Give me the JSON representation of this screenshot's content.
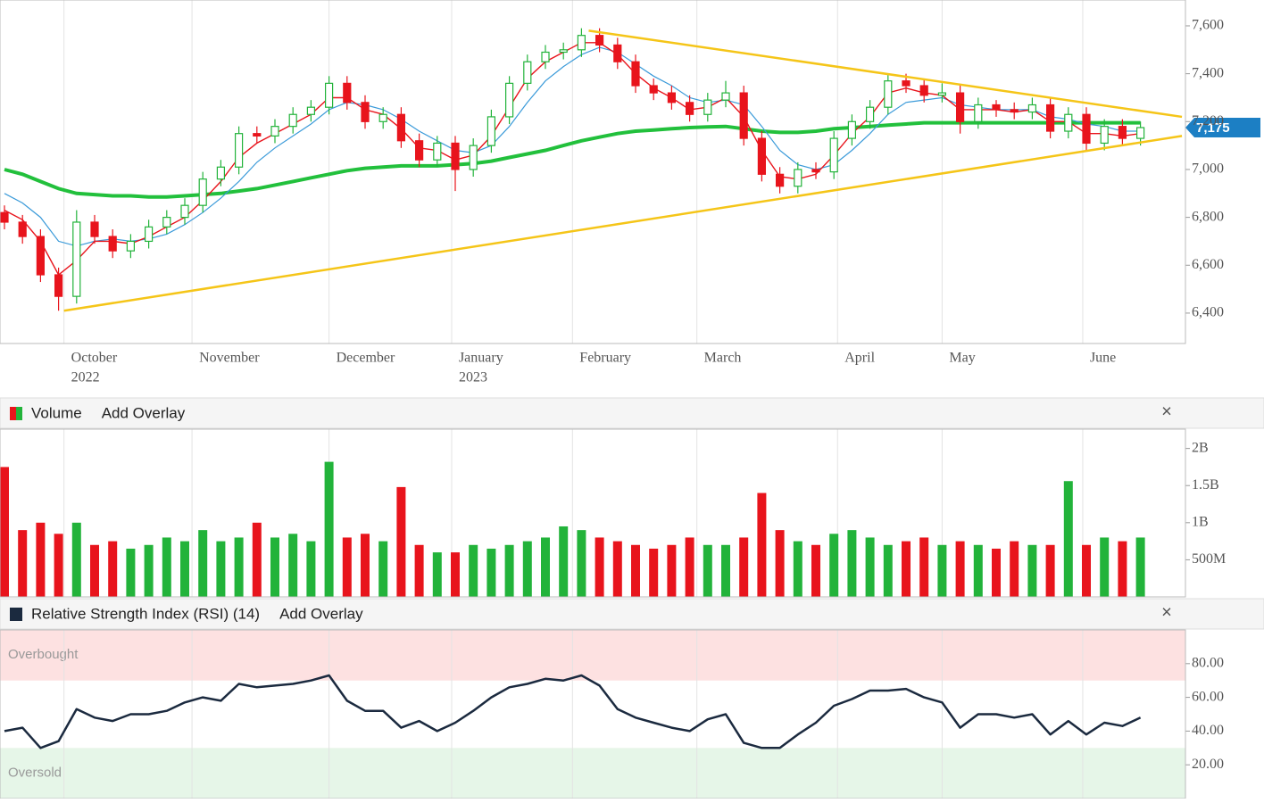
{
  "chart_data": [
    {
      "type": "candlestick",
      "open": [
        6820,
        6780,
        6720,
        6560,
        6470,
        6780,
        6720,
        6660,
        6700,
        6760,
        6800,
        6850,
        6960,
        7010,
        7150,
        7140,
        7180,
        7230,
        7260,
        7360,
        7280,
        7200,
        7230,
        7120,
        7040,
        7110,
        7000,
        7100,
        7220,
        7360,
        7450,
        7490,
        7500,
        7560,
        7520,
        7450,
        7350,
        7320,
        7280,
        7230,
        7290,
        7320,
        7130,
        6980,
        6930,
        7000,
        6990,
        7130,
        7200,
        7260,
        7370,
        7350,
        7310,
        7320,
        7200,
        7270,
        7250,
        7240,
        7270,
        7160,
        7230,
        7110,
        7180,
        7130
      ],
      "high": [
        6850,
        6810,
        6750,
        6590,
        6830,
        6810,
        6750,
        6730,
        6790,
        6830,
        6880,
        6990,
        7040,
        7180,
        7180,
        7210,
        7260,
        7290,
        7390,
        7390,
        7310,
        7260,
        7260,
        7150,
        7140,
        7140,
        7130,
        7250,
        7390,
        7480,
        7520,
        7530,
        7590,
        7590,
        7550,
        7480,
        7380,
        7350,
        7310,
        7320,
        7370,
        7350,
        7160,
        7010,
        7030,
        7030,
        7160,
        7230,
        7290,
        7400,
        7400,
        7380,
        7360,
        7350,
        7300,
        7290,
        7280,
        7300,
        7300,
        7260,
        7260,
        7210,
        7210,
        7200
      ],
      "low": [
        6750,
        6690,
        6530,
        6410,
        6440,
        6690,
        6630,
        6630,
        6670,
        6730,
        6770,
        6820,
        6930,
        6980,
        7110,
        7110,
        7150,
        7200,
        7230,
        7250,
        7170,
        7170,
        7090,
        7010,
        7010,
        6910,
        6970,
        7070,
        7190,
        7330,
        7420,
        7460,
        7470,
        7490,
        7420,
        7320,
        7290,
        7250,
        7200,
        7200,
        7260,
        7100,
        6950,
        6900,
        6900,
        6960,
        6960,
        7100,
        7170,
        7230,
        7320,
        7280,
        7280,
        7150,
        7170,
        7220,
        7210,
        7210,
        7130,
        7130,
        7080,
        7080,
        7100,
        7100
      ],
      "close": [
        6780,
        6720,
        6560,
        6470,
        6780,
        6720,
        6660,
        6700,
        6760,
        6800,
        6850,
        6960,
        7010,
        7150,
        7140,
        7180,
        7230,
        7260,
        7360,
        7280,
        7200,
        7230,
        7120,
        7040,
        7110,
        7000,
        7100,
        7220,
        7360,
        7450,
        7490,
        7500,
        7560,
        7520,
        7450,
        7350,
        7320,
        7280,
        7230,
        7290,
        7320,
        7130,
        6980,
        6930,
        7000,
        6990,
        7130,
        7200,
        7260,
        7370,
        7350,
        7310,
        7320,
        7200,
        7270,
        7250,
        7240,
        7270,
        7160,
        7230,
        7110,
        7180,
        7130,
        7175
      ],
      "up_color": "#22b33a",
      "down_color": "#e8141c",
      "series": [
        {
          "color": "#22c03c",
          "width": 4,
          "values": [
            7000,
            6980,
            6950,
            6920,
            6900,
            6895,
            6890,
            6890,
            6885,
            6885,
            6890,
            6895,
            6900,
            6910,
            6920,
            6935,
            6950,
            6965,
            6980,
            6995,
            7005,
            7010,
            7015,
            7015,
            7015,
            7020,
            7025,
            7035,
            7050,
            7065,
            7080,
            7100,
            7120,
            7135,
            7150,
            7160,
            7165,
            7170,
            7175,
            7178,
            7180,
            7170,
            7160,
            7155,
            7155,
            7160,
            7170,
            7175,
            7180,
            7185,
            7190,
            7195,
            7195,
            7195,
            7195,
            7195,
            7195,
            7195,
            7195,
            7195,
            7195,
            7195,
            7195,
            7195
          ]
        },
        {
          "color": "#3a9ad9",
          "width": 1.2,
          "values": [
            6900,
            6860,
            6800,
            6700,
            6680,
            6700,
            6710,
            6700,
            6710,
            6730,
            6770,
            6820,
            6880,
            6950,
            7030,
            7090,
            7140,
            7190,
            7250,
            7280,
            7270,
            7250,
            7210,
            7160,
            7120,
            7080,
            7070,
            7100,
            7180,
            7280,
            7370,
            7430,
            7480,
            7510,
            7490,
            7440,
            7390,
            7350,
            7300,
            7280,
            7290,
            7270,
            7180,
            7080,
            7020,
            7000,
            7020,
            7080,
            7150,
            7230,
            7280,
            7290,
            7300,
            7270,
            7260,
            7250,
            7250,
            7250,
            7220,
            7210,
            7190,
            7180,
            7160,
            7160
          ]
        },
        {
          "color": "#e8141c",
          "width": 1.4,
          "values": [
            6830,
            6790,
            6700,
            6560,
            6620,
            6700,
            6700,
            6690,
            6720,
            6760,
            6800,
            6870,
            6950,
            7050,
            7110,
            7150,
            7190,
            7230,
            7300,
            7300,
            7250,
            7230,
            7170,
            7090,
            7080,
            7040,
            7060,
            7140,
            7260,
            7380,
            7450,
            7490,
            7530,
            7530,
            7480,
            7400,
            7340,
            7300,
            7250,
            7260,
            7300,
            7220,
            7080,
            6970,
            6960,
            6980,
            7060,
            7150,
            7220,
            7320,
            7340,
            7320,
            7310,
            7250,
            7250,
            7250,
            7240,
            7250,
            7200,
            7200,
            7150,
            7150,
            7140,
            7150
          ]
        }
      ],
      "trendlines": [
        {
          "color": "#f5c518",
          "points": [
            [
              3.3,
              6410
            ],
            [
              65.3,
              7140
            ]
          ]
        },
        {
          "color": "#f5c518",
          "points": [
            [
              32.4,
              7580
            ],
            [
              65.3,
              7220
            ]
          ]
        }
      ],
      "last_price": {
        "value": 7175,
        "label": "7,175",
        "color": "#1c7fc4"
      },
      "ylim": [
        6273,
        7708
      ],
      "yticks": [
        {
          "value": 6400,
          "label": "6,400"
        },
        {
          "value": 6600,
          "label": "6,600"
        },
        {
          "value": 6800,
          "label": "6,800"
        },
        {
          "value": 7000,
          "label": "7,000"
        },
        {
          "value": 7200,
          "label": "7,200"
        },
        {
          "value": 7400,
          "label": "7,400"
        },
        {
          "value": 7600,
          "label": "7,600"
        }
      ],
      "xticks": [
        {
          "value": 3.3,
          "label": "October"
        },
        {
          "value": 10.4,
          "label": "November"
        },
        {
          "value": 18.0,
          "label": "December"
        },
        {
          "value": 24.8,
          "label": "January"
        },
        {
          "value": 31.5,
          "label": "February"
        },
        {
          "value": 38.4,
          "label": "March"
        },
        {
          "value": 46.2,
          "label": "April"
        },
        {
          "value": 52.0,
          "label": "May"
        },
        {
          "value": 59.8,
          "label": "June"
        }
      ],
      "year_labels": [
        {
          "value": 3.3,
          "label": "2022"
        },
        {
          "value": 24.8,
          "label": "2023"
        }
      ]
    },
    {
      "type": "bar",
      "title": "Volume",
      "overlay_button": "Add Overlay",
      "values": [
        1750000000,
        900000000,
        1000000000,
        850000000,
        1000000000,
        700000000,
        750000000,
        650000000,
        700000000,
        800000000,
        750000000,
        900000000,
        750000000,
        800000000,
        1000000000,
        800000000,
        850000000,
        750000000,
        1820000000,
        800000000,
        850000000,
        750000000,
        1480000000,
        700000000,
        600000000,
        600000000,
        700000000,
        650000000,
        700000000,
        750000000,
        800000000,
        950000000,
        900000000,
        800000000,
        750000000,
        700000000,
        650000000,
        700000000,
        800000000,
        700000000,
        700000000,
        800000000,
        1400000000,
        900000000,
        750000000,
        700000000,
        850000000,
        900000000,
        800000000,
        700000000,
        750000000,
        800000000,
        700000000,
        750000000,
        700000000,
        650000000,
        750000000,
        700000000,
        700000000,
        1560000000,
        700000000,
        800000000,
        750000000,
        800000000
      ],
      "ylim": [
        0,
        2260000000
      ],
      "yticks": [
        {
          "value": 500000000,
          "label": "500M"
        },
        {
          "value": 1000000000,
          "label": "1B"
        },
        {
          "value": 1500000000,
          "label": "1.5B"
        },
        {
          "value": 2000000000,
          "label": "2B"
        }
      ]
    },
    {
      "type": "line",
      "title": "Relative Strength Index (RSI) (14)",
      "overlay_button": "Add Overlay",
      "series": [
        {
          "color": "#1b2a3f",
          "width": 2.5,
          "values": [
            40,
            42,
            30,
            34,
            53,
            48,
            46,
            50,
            50,
            52,
            57,
            60,
            58,
            68,
            66,
            67,
            68,
            70,
            73,
            58,
            52,
            52,
            42,
            46,
            40,
            45,
            52,
            60,
            66,
            68,
            71,
            70,
            73,
            67,
            53,
            48,
            45,
            42,
            40,
            47,
            50,
            33,
            30,
            30,
            38,
            45,
            55,
            59,
            64,
            64,
            65,
            60,
            57,
            42,
            50,
            50,
            48,
            50,
            38,
            46,
            38,
            45,
            43,
            48
          ]
        }
      ],
      "bands": [
        {
          "label": "Overbought",
          "from": 70,
          "to": 100,
          "color": "#fde1e1"
        },
        {
          "label": "Oversold",
          "from": 0,
          "to": 30,
          "color": "#e6f6e8"
        }
      ],
      "ylim": [
        0,
        100
      ],
      "yticks": [
        {
          "value": 20,
          "label": "20.00"
        },
        {
          "value": 40,
          "label": "40.00"
        },
        {
          "value": 60,
          "label": "60.00"
        },
        {
          "value": 80,
          "label": "80.00"
        }
      ]
    }
  ]
}
